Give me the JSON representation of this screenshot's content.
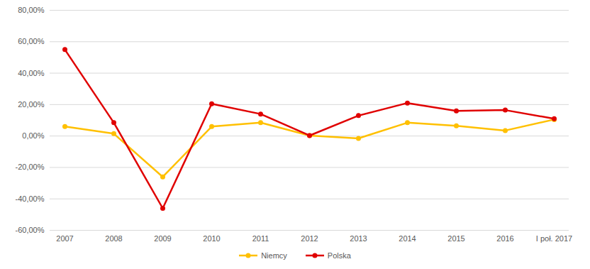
{
  "chart_data": {
    "type": "line",
    "categories": [
      "2007",
      "2008",
      "2009",
      "2010",
      "2011",
      "2012",
      "2013",
      "2014",
      "2015",
      "2016",
      "I poł. 2017"
    ],
    "series": [
      {
        "name": "Niemcy",
        "color": "#FFC000",
        "marker": "circle",
        "values": [
          6,
          1.5,
          -26,
          6,
          8.5,
          0.3,
          -1.5,
          8.5,
          6.5,
          3.5,
          10.5
        ]
      },
      {
        "name": "Polska",
        "color": "#E00000",
        "marker": "circle",
        "values": [
          55,
          8.5,
          -46,
          20.5,
          14,
          0.3,
          13,
          21,
          16,
          16.5,
          11
        ]
      }
    ],
    "ylim": [
      -60,
      80
    ],
    "yticks": [
      {
        "value": -60,
        "label": "-60,00%"
      },
      {
        "value": -40,
        "label": "-40,00%"
      },
      {
        "value": -20,
        "label": "-20,00%"
      },
      {
        "value": 0,
        "label": "0,00%"
      },
      {
        "value": 20,
        "label": "20,00%"
      },
      {
        "value": 40,
        "label": "40,00%"
      },
      {
        "value": 60,
        "label": "60,00%"
      },
      {
        "value": 80,
        "label": "80,00%"
      }
    ],
    "grid": true,
    "legend": "bottom"
  }
}
